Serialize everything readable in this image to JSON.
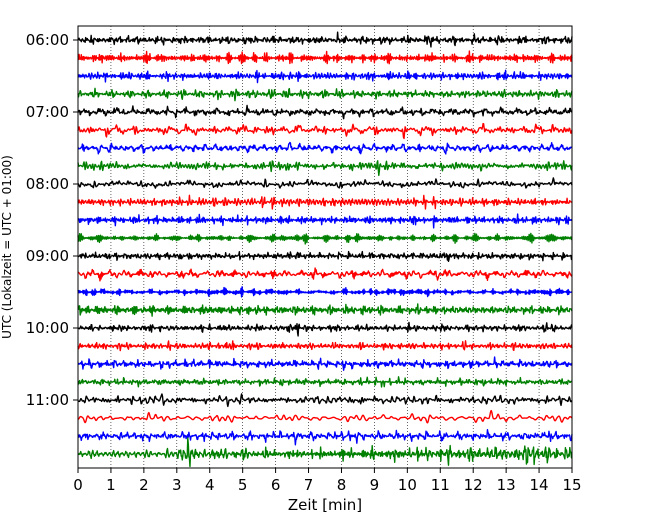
{
  "chart_data": {
    "type": "line",
    "xlabel": "Zeit  [min]",
    "ylabel": "UTC (Lokalzeit = UTC + 01:00)",
    "xlim": [
      0,
      15
    ],
    "x_ticks": [
      "0",
      "1",
      "2",
      "3",
      "4",
      "5",
      "6",
      "7",
      "8",
      "9",
      "10",
      "11",
      "12",
      "13",
      "14",
      "15"
    ],
    "y_tick_labels": [
      "06:00",
      "07:00",
      "08:00",
      "09:00",
      "10:00",
      "11:00"
    ],
    "grid": "vertical dotted lines at each minute",
    "row_interval_minutes": 15,
    "row_colors": [
      "#000000",
      "#ff0000",
      "#0000ff",
      "#008000"
    ],
    "rows": [
      {
        "start": "06:00",
        "color": "#000000"
      },
      {
        "start": "06:15",
        "color": "#ff0000"
      },
      {
        "start": "06:30",
        "color": "#0000ff"
      },
      {
        "start": "06:45",
        "color": "#008000"
      },
      {
        "start": "07:00",
        "color": "#000000"
      },
      {
        "start": "07:15",
        "color": "#ff0000"
      },
      {
        "start": "07:30",
        "color": "#0000ff"
      },
      {
        "start": "07:45",
        "color": "#008000"
      },
      {
        "start": "08:00",
        "color": "#000000"
      },
      {
        "start": "08:15",
        "color": "#ff0000"
      },
      {
        "start": "08:30",
        "color": "#0000ff"
      },
      {
        "start": "08:45",
        "color": "#008000"
      },
      {
        "start": "09:00",
        "color": "#000000"
      },
      {
        "start": "09:15",
        "color": "#ff0000"
      },
      {
        "start": "09:30",
        "color": "#0000ff"
      },
      {
        "start": "09:45",
        "color": "#008000"
      },
      {
        "start": "10:00",
        "color": "#000000"
      },
      {
        "start": "10:15",
        "color": "#ff0000"
      },
      {
        "start": "10:30",
        "color": "#0000ff"
      },
      {
        "start": "10:45",
        "color": "#008000"
      },
      {
        "start": "11:00",
        "color": "#000000"
      },
      {
        "start": "11:15",
        "color": "#ff0000"
      },
      {
        "start": "11:30",
        "color": "#0000ff"
      },
      {
        "start": "11:45",
        "color": "#008000"
      }
    ],
    "bursts": [
      {
        "row": 0,
        "x": 10.6,
        "level": 1.5
      },
      {
        "row": 1,
        "x": 2.0,
        "level": 1.2
      },
      {
        "row": 2,
        "x": 9.0,
        "level": 1.3
      },
      {
        "row": 3,
        "x": 12.2,
        "level": 1.1
      },
      {
        "row": 4,
        "x": 1.0,
        "level": 1.3
      },
      {
        "row": 5,
        "x": 8.5,
        "level": 1.2
      },
      {
        "row": 6,
        "x": 5.0,
        "level": 1.1
      },
      {
        "row": 7,
        "x": 9.2,
        "level": 1.5
      },
      {
        "row": 8,
        "x": 2.2,
        "level": 1.5
      },
      {
        "row": 8,
        "x": 8.2,
        "level": 1.3
      },
      {
        "row": 9,
        "x": 11.5,
        "level": 1.1
      },
      {
        "row": 10,
        "x": 10.2,
        "level": 1.4
      },
      {
        "row": 11,
        "x": 6.8,
        "level": 1.3
      },
      {
        "row": 12,
        "x": 11.2,
        "level": 1.8
      },
      {
        "row": 12,
        "x": 6.6,
        "level": 1.3
      },
      {
        "row": 13,
        "x": 10.8,
        "level": 1.3
      },
      {
        "row": 14,
        "x": 1.5,
        "level": 1.3
      },
      {
        "row": 15,
        "x": 4.0,
        "level": 1.3
      },
      {
        "row": 16,
        "x": 6.5,
        "level": 2.6
      },
      {
        "row": 16,
        "x": 14.2,
        "level": 1.3
      },
      {
        "row": 17,
        "x": 4.6,
        "level": 1.4
      },
      {
        "row": 18,
        "x": 9.2,
        "level": 1.3
      },
      {
        "row": 19,
        "x": 1.7,
        "level": 1.1
      },
      {
        "row": 20,
        "x": 2.5,
        "level": 1.4
      },
      {
        "row": 20,
        "x": 8.5,
        "level": 1.5
      },
      {
        "row": 21,
        "x": 4.5,
        "level": 1.3
      },
      {
        "row": 22,
        "x": 6.8,
        "level": 1.6
      },
      {
        "row": 22,
        "x": 8.3,
        "level": 1.5
      },
      {
        "row": 22,
        "x": 14.4,
        "level": 1.6
      },
      {
        "row": 23,
        "x": 3.2,
        "level": 3.0
      },
      {
        "row": 23,
        "x": 13.8,
        "level": 2.0
      }
    ]
  }
}
